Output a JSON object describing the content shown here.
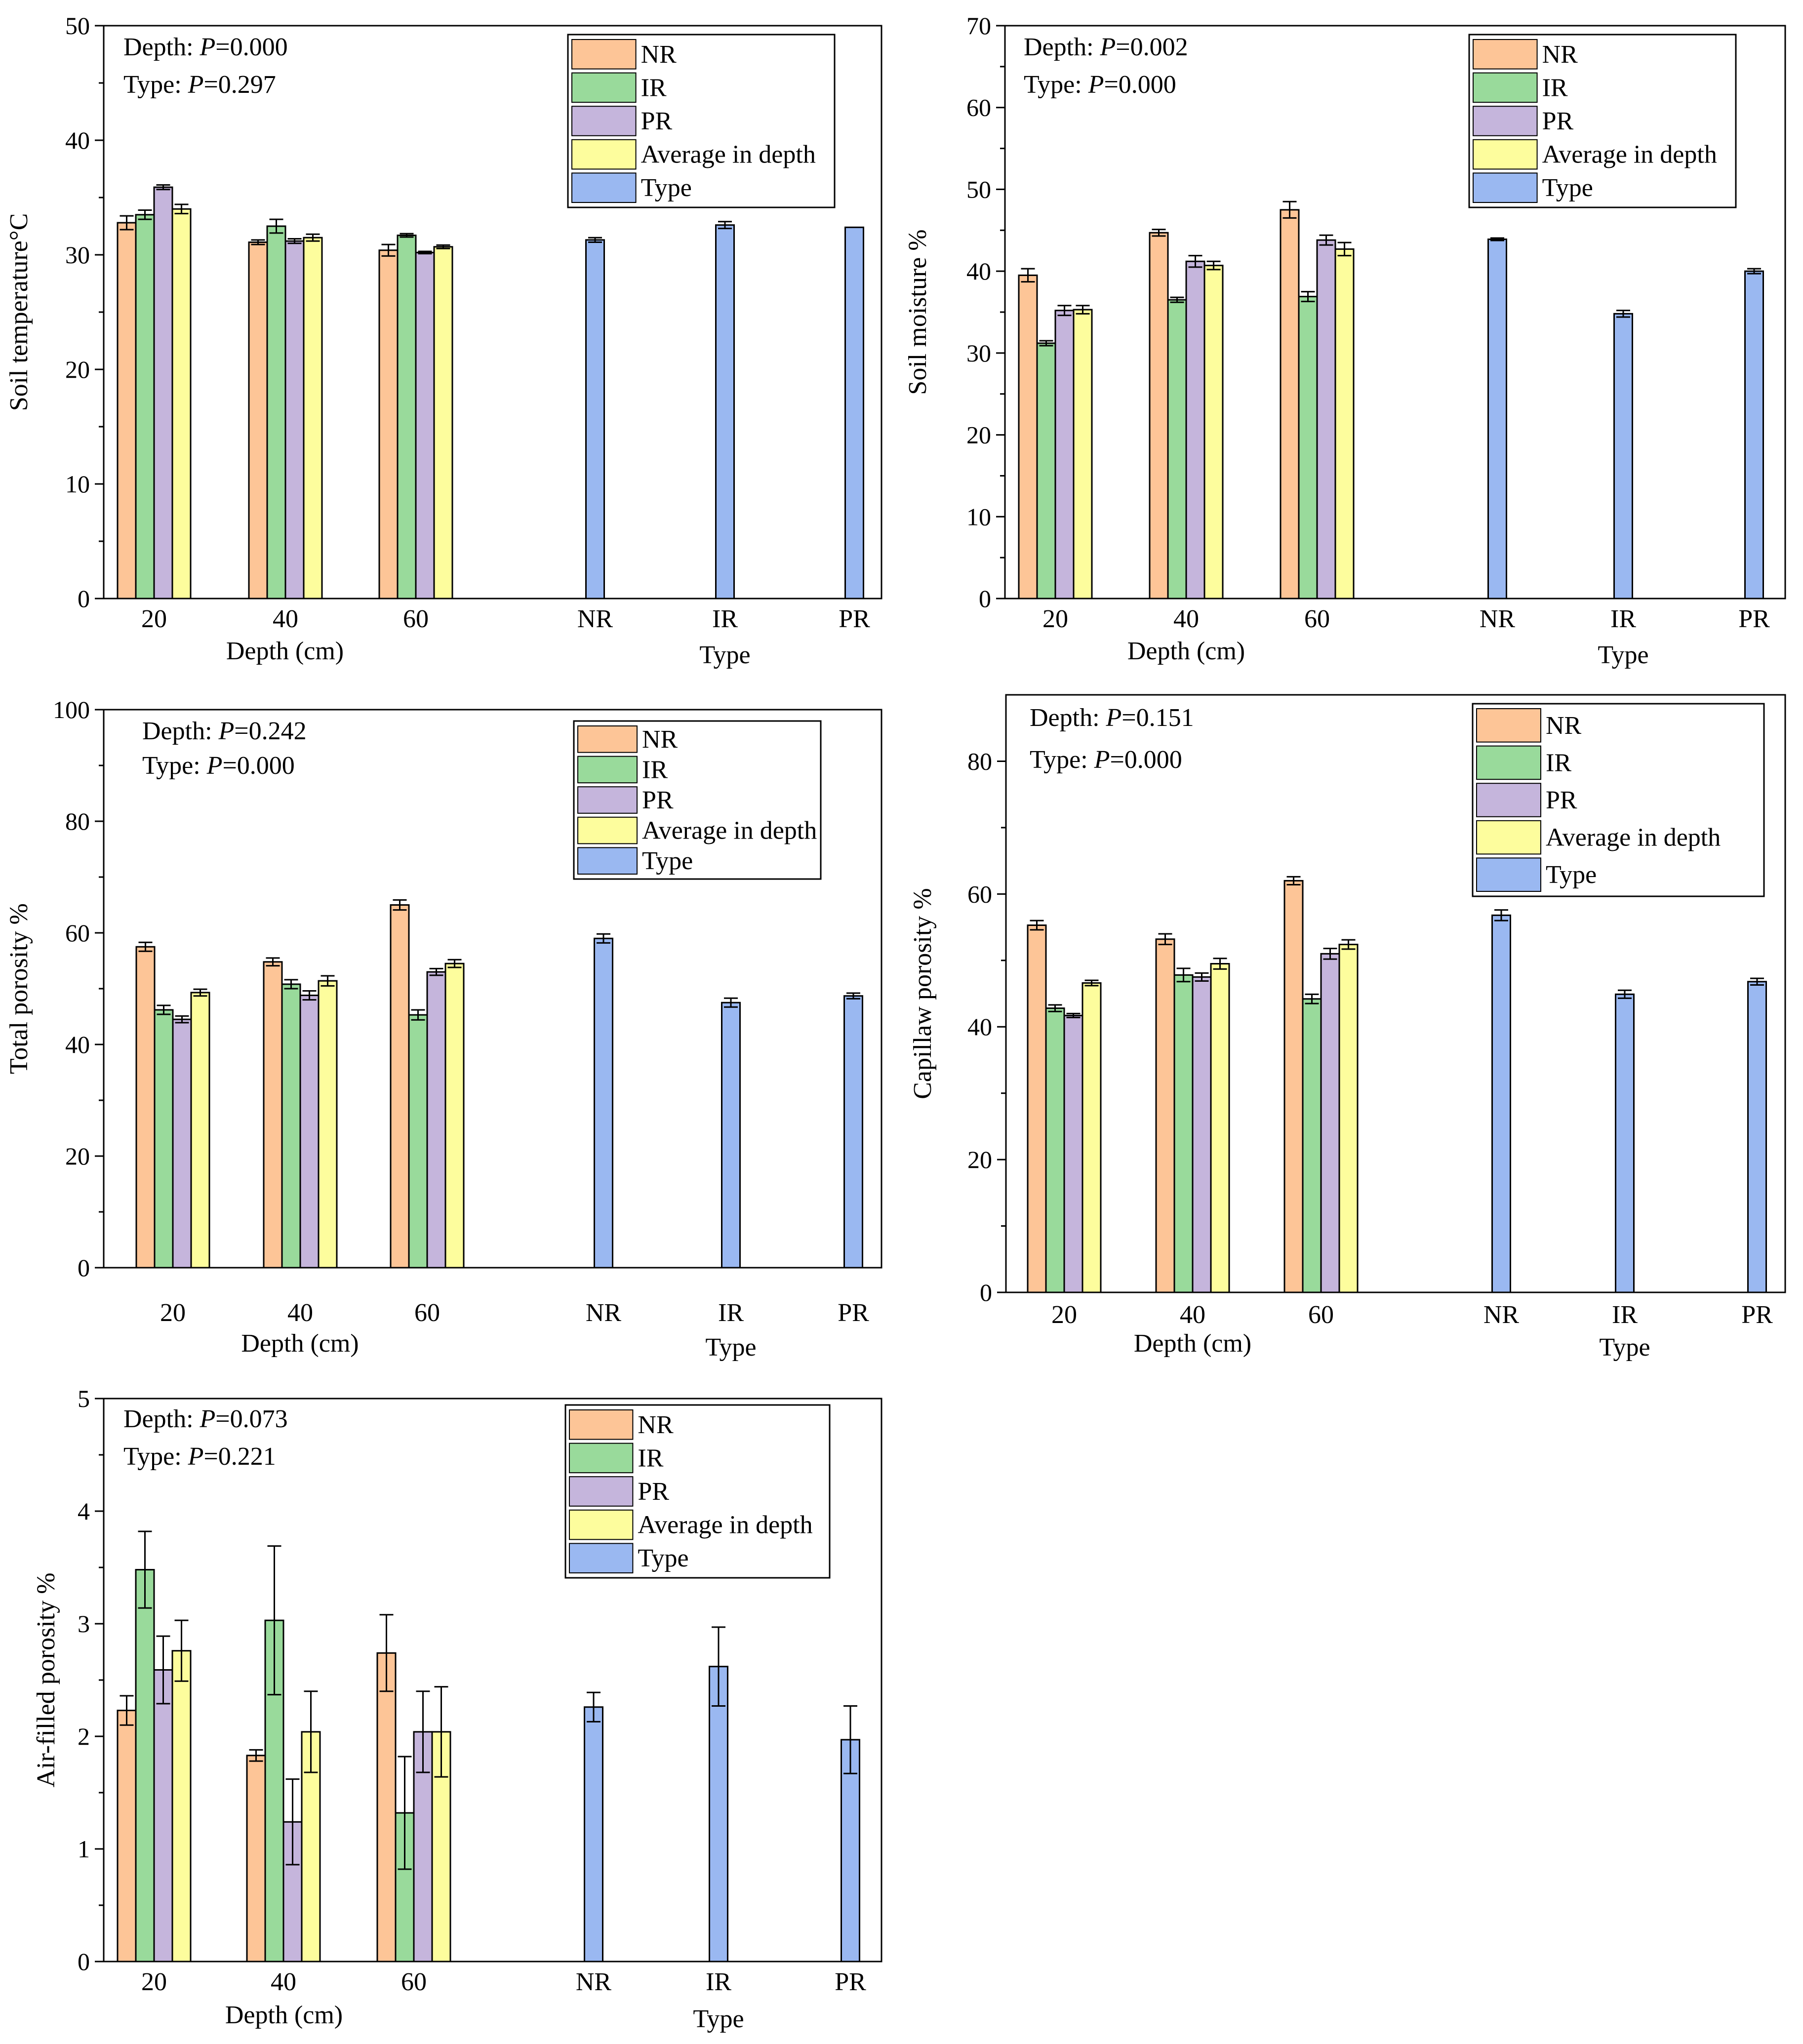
{
  "colors": {
    "NR": "#FDC597",
    "IR": "#99DA9B",
    "PR": "#C5B5DC",
    "Average in depth": "#FDFD9D",
    "Type": "#9AB8F1",
    "stroke": "#000000"
  },
  "chart_data": [
    {
      "type": "bar",
      "ylabel": "Soil temperature°C",
      "ylim": [
        0,
        50
      ],
      "yticks": [
        "0",
        "10",
        "20",
        "30",
        "40",
        "50"
      ],
      "depth_categories": [
        "20",
        "40",
        "60"
      ],
      "depth_axis_label": "Depth (cm)",
      "type_categories": [
        "NR",
        "IR",
        "PR"
      ],
      "type_axis_label": "Type",
      "stats": [
        {
          "label": "Depth: ",
          "p": "P",
          "value": "=0.000"
        },
        {
          "label": "Type: ",
          "p": "P",
          "value": "=0.297"
        }
      ],
      "legend": [
        "NR",
        "IR",
        "PR",
        "Average in depth",
        "Type"
      ],
      "depth_series": [
        {
          "name": "NR",
          "values": [
            32.8,
            31.1,
            30.4
          ],
          "errors": [
            0.6,
            0.2,
            0.5
          ]
        },
        {
          "name": "IR",
          "values": [
            33.5,
            32.5,
            31.7
          ],
          "errors": [
            0.4,
            0.6,
            0.15
          ]
        },
        {
          "name": "PR",
          "values": [
            35.9,
            31.2,
            30.2
          ],
          "errors": [
            0.2,
            0.2,
            0.1
          ]
        },
        {
          "name": "Average in depth",
          "values": [
            34.0,
            31.5,
            30.7
          ],
          "errors": [
            0.4,
            0.3,
            0.15
          ]
        }
      ],
      "type_series": {
        "name": "Type",
        "values": [
          31.3,
          32.6,
          32.4
        ],
        "errors": [
          0.2,
          0.3,
          0.0
        ]
      }
    },
    {
      "type": "bar",
      "ylabel": "Soil moisture %",
      "ylim": [
        0,
        70
      ],
      "yticks": [
        "0",
        "10",
        "20",
        "30",
        "40",
        "50",
        "60",
        "70"
      ],
      "depth_categories": [
        "20",
        "40",
        "60"
      ],
      "depth_axis_label": "Depth (cm)",
      "type_categories": [
        "NR",
        "IR",
        "PR"
      ],
      "type_axis_label": "Type",
      "stats": [
        {
          "label": "Depth: ",
          "p": "P",
          "value": "=0.002"
        },
        {
          "label": "Type: ",
          "p": "P",
          "value": "=0.000"
        }
      ],
      "legend": [
        "NR",
        "IR",
        "PR",
        "Average in depth",
        "Type"
      ],
      "depth_series": [
        {
          "name": "NR",
          "values": [
            39.5,
            44.7,
            47.5
          ],
          "errors": [
            0.8,
            0.4,
            1.0
          ]
        },
        {
          "name": "IR",
          "values": [
            31.2,
            36.5,
            36.9
          ],
          "errors": [
            0.3,
            0.3,
            0.6
          ]
        },
        {
          "name": "PR",
          "values": [
            35.2,
            41.2,
            43.8
          ],
          "errors": [
            0.6,
            0.7,
            0.6
          ]
        },
        {
          "name": "Average in depth",
          "values": [
            35.3,
            40.7,
            42.7
          ],
          "errors": [
            0.5,
            0.5,
            0.8
          ]
        }
      ],
      "type_series": {
        "name": "Type",
        "values": [
          43.9,
          34.8,
          40.0
        ],
        "errors": [
          0.15,
          0.4,
          0.3
        ]
      }
    },
    {
      "type": "bar",
      "ylabel": "Total porosity %",
      "ylim": [
        0,
        100
      ],
      "yticks": [
        "0",
        "20",
        "40",
        "60",
        "80",
        "100"
      ],
      "depth_categories": [
        "20",
        "40",
        "60"
      ],
      "depth_axis_label": "Depth (cm)",
      "type_categories": [
        "NR",
        "IR",
        "PR"
      ],
      "type_axis_label": "Type",
      "stats": [
        {
          "label": "Depth: ",
          "p": "P",
          "value": "=0.242"
        },
        {
          "label": "Type: ",
          "p": "P",
          "value": "=0.000"
        }
      ],
      "legend": [
        "NR",
        "IR",
        "PR",
        "Average in depth",
        "Type"
      ],
      "depth_series": [
        {
          "name": "NR",
          "values": [
            57.5,
            54.8,
            65.0
          ],
          "errors": [
            0.8,
            0.7,
            0.9
          ]
        },
        {
          "name": "IR",
          "values": [
            46.2,
            50.8,
            45.3
          ],
          "errors": [
            0.8,
            0.8,
            0.9
          ]
        },
        {
          "name": "PR",
          "values": [
            44.5,
            48.8,
            53.0
          ],
          "errors": [
            0.6,
            0.8,
            0.6
          ]
        },
        {
          "name": "Average in depth",
          "values": [
            49.3,
            51.4,
            54.5
          ],
          "errors": [
            0.6,
            0.9,
            0.7
          ]
        }
      ],
      "type_series": {
        "name": "Type",
        "values": [
          59.0,
          47.5,
          48.7
        ],
        "errors": [
          0.8,
          0.8,
          0.5
        ]
      }
    },
    {
      "type": "bar",
      "ylabel": "Capillaw porosity %",
      "ylim": [
        0,
        90
      ],
      "yticks": [
        "0",
        "20",
        "40",
        "60",
        "80"
      ],
      "depth_categories": [
        "20",
        "40",
        "60"
      ],
      "depth_axis_label": "Depth (cm)",
      "type_categories": [
        "NR",
        "IR",
        "PR"
      ],
      "type_axis_label": "Type",
      "stats": [
        {
          "label": "Depth: ",
          "p": "P",
          "value": "=0.151"
        },
        {
          "label": "Type: ",
          "p": "P",
          "value": "=0.000"
        }
      ],
      "legend": [
        "NR",
        "IR",
        "PR",
        "Average in depth",
        "Type"
      ],
      "depth_series": [
        {
          "name": "NR",
          "values": [
            55.3,
            53.2,
            62.0
          ],
          "errors": [
            0.7,
            0.8,
            0.6
          ]
        },
        {
          "name": "IR",
          "values": [
            42.8,
            47.8,
            44.2
          ],
          "errors": [
            0.5,
            1.0,
            0.7
          ]
        },
        {
          "name": "PR",
          "values": [
            41.7,
            47.5,
            51.0
          ],
          "errors": [
            0.3,
            0.6,
            0.8
          ]
        },
        {
          "name": "Average in depth",
          "values": [
            46.6,
            49.5,
            52.4
          ],
          "errors": [
            0.4,
            0.8,
            0.7
          ]
        }
      ],
      "type_series": {
        "name": "Type",
        "values": [
          56.8,
          44.9,
          46.8
        ],
        "errors": [
          0.8,
          0.6,
          0.5
        ]
      }
    },
    {
      "type": "bar",
      "ylabel": "Air-filled porosity %",
      "ylim": [
        0,
        5
      ],
      "yticks": [
        "0",
        "1",
        "2",
        "3",
        "4",
        "5"
      ],
      "depth_categories": [
        "20",
        "40",
        "60"
      ],
      "depth_axis_label": "Depth (cm)",
      "type_categories": [
        "NR",
        "IR",
        "PR"
      ],
      "type_axis_label": "Type",
      "stats": [
        {
          "label": "Depth: ",
          "p": "P",
          "value": "=0.073"
        },
        {
          "label": "Type: ",
          "p": "P",
          "value": "=0.221"
        }
      ],
      "legend": [
        "NR",
        "IR",
        "PR",
        "Average in depth",
        "Type"
      ],
      "depth_series": [
        {
          "name": "NR",
          "values": [
            2.23,
            1.83,
            2.74
          ],
          "errors": [
            0.13,
            0.05,
            0.34
          ]
        },
        {
          "name": "IR",
          "values": [
            3.48,
            3.03,
            1.32
          ],
          "errors": [
            0.34,
            0.66,
            0.5
          ]
        },
        {
          "name": "PR",
          "values": [
            2.59,
            1.24,
            2.04
          ],
          "errors": [
            0.3,
            0.38,
            0.36
          ]
        },
        {
          "name": "Average in depth",
          "values": [
            2.76,
            2.04,
            2.04
          ],
          "errors": [
            0.27,
            0.36,
            0.4
          ]
        }
      ],
      "type_series": {
        "name": "Type",
        "values": [
          2.26,
          2.62,
          1.97
        ],
        "errors": [
          0.13,
          0.35,
          0.3
        ]
      }
    }
  ]
}
